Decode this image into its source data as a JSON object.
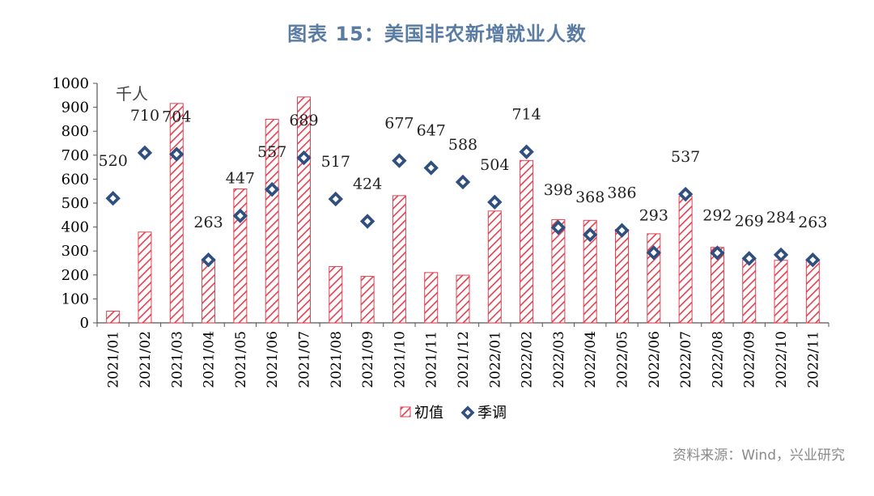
{
  "title": "图表 15：美国非农新增就业人数",
  "source": "资料来源：Wind，兴业研究",
  "chart_data": {
    "type": "bar",
    "unit_label": "千人",
    "categories": [
      "2021/01",
      "2021/02",
      "2021/03",
      "2021/04",
      "2021/05",
      "2021/06",
      "2021/07",
      "2021/08",
      "2021/09",
      "2021/10",
      "2021/11",
      "2021/12",
      "2022/01",
      "2022/02",
      "2022/03",
      "2022/04",
      "2022/05",
      "2022/06",
      "2022/07",
      "2022/08",
      "2022/09",
      "2022/10",
      "2022/11"
    ],
    "ylim": [
      0,
      1000
    ],
    "yticks": [
      0,
      100,
      200,
      300,
      400,
      500,
      600,
      700,
      800,
      900,
      1000
    ],
    "grid": false,
    "legend_position": "bottom",
    "series": [
      {
        "name": "初值",
        "type": "bar",
        "color": "#e2404f",
        "values": [
          49,
          379,
          916,
          266,
          559,
          850,
          943,
          235,
          194,
          531,
          210,
          199,
          467,
          678,
          431,
          428,
          390,
          372,
          528,
          315,
          263,
          261,
          263
        ]
      },
      {
        "name": "季调",
        "type": "scatter",
        "color": "#2f4f7f",
        "values": [
          520,
          710,
          704,
          263,
          447,
          557,
          689,
          517,
          424,
          677,
          647,
          588,
          504,
          714,
          398,
          368,
          386,
          293,
          537,
          292,
          269,
          284,
          263
        ]
      }
    ]
  }
}
